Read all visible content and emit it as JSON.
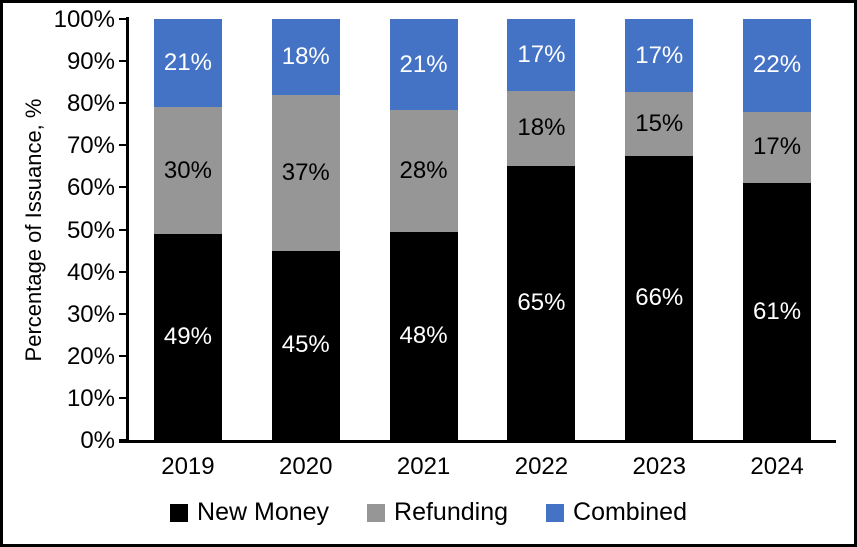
{
  "chart_data": {
    "type": "stacked_bar",
    "title": "",
    "xlabel": "",
    "ylabel": "Percentage of Issuance, %",
    "categories": [
      "2019",
      "2020",
      "2021",
      "2022",
      "2023",
      "2024"
    ],
    "series": [
      {
        "name": "New Money",
        "color": "#000000",
        "label_color": "#ffffff",
        "values": [
          49,
          45,
          48,
          65,
          66,
          61
        ]
      },
      {
        "name": "Refunding",
        "color": "#969696",
        "label_color": "#000000",
        "values": [
          30,
          37,
          28,
          18,
          15,
          17
        ]
      },
      {
        "name": "Combined",
        "color": "#4472c4",
        "label_color": "#ffffff",
        "values": [
          21,
          18,
          21,
          17,
          17,
          22
        ]
      }
    ],
    "label_suffix": "%",
    "y_ticks": [
      "100%",
      "90%",
      "80%",
      "70%",
      "60%",
      "50%",
      "40%",
      "30%",
      "20%",
      "10%",
      "0%"
    ],
    "ylim": [
      0,
      100
    ],
    "grid": false,
    "legend_position": "bottom",
    "stacks_normalized_to": 100
  }
}
